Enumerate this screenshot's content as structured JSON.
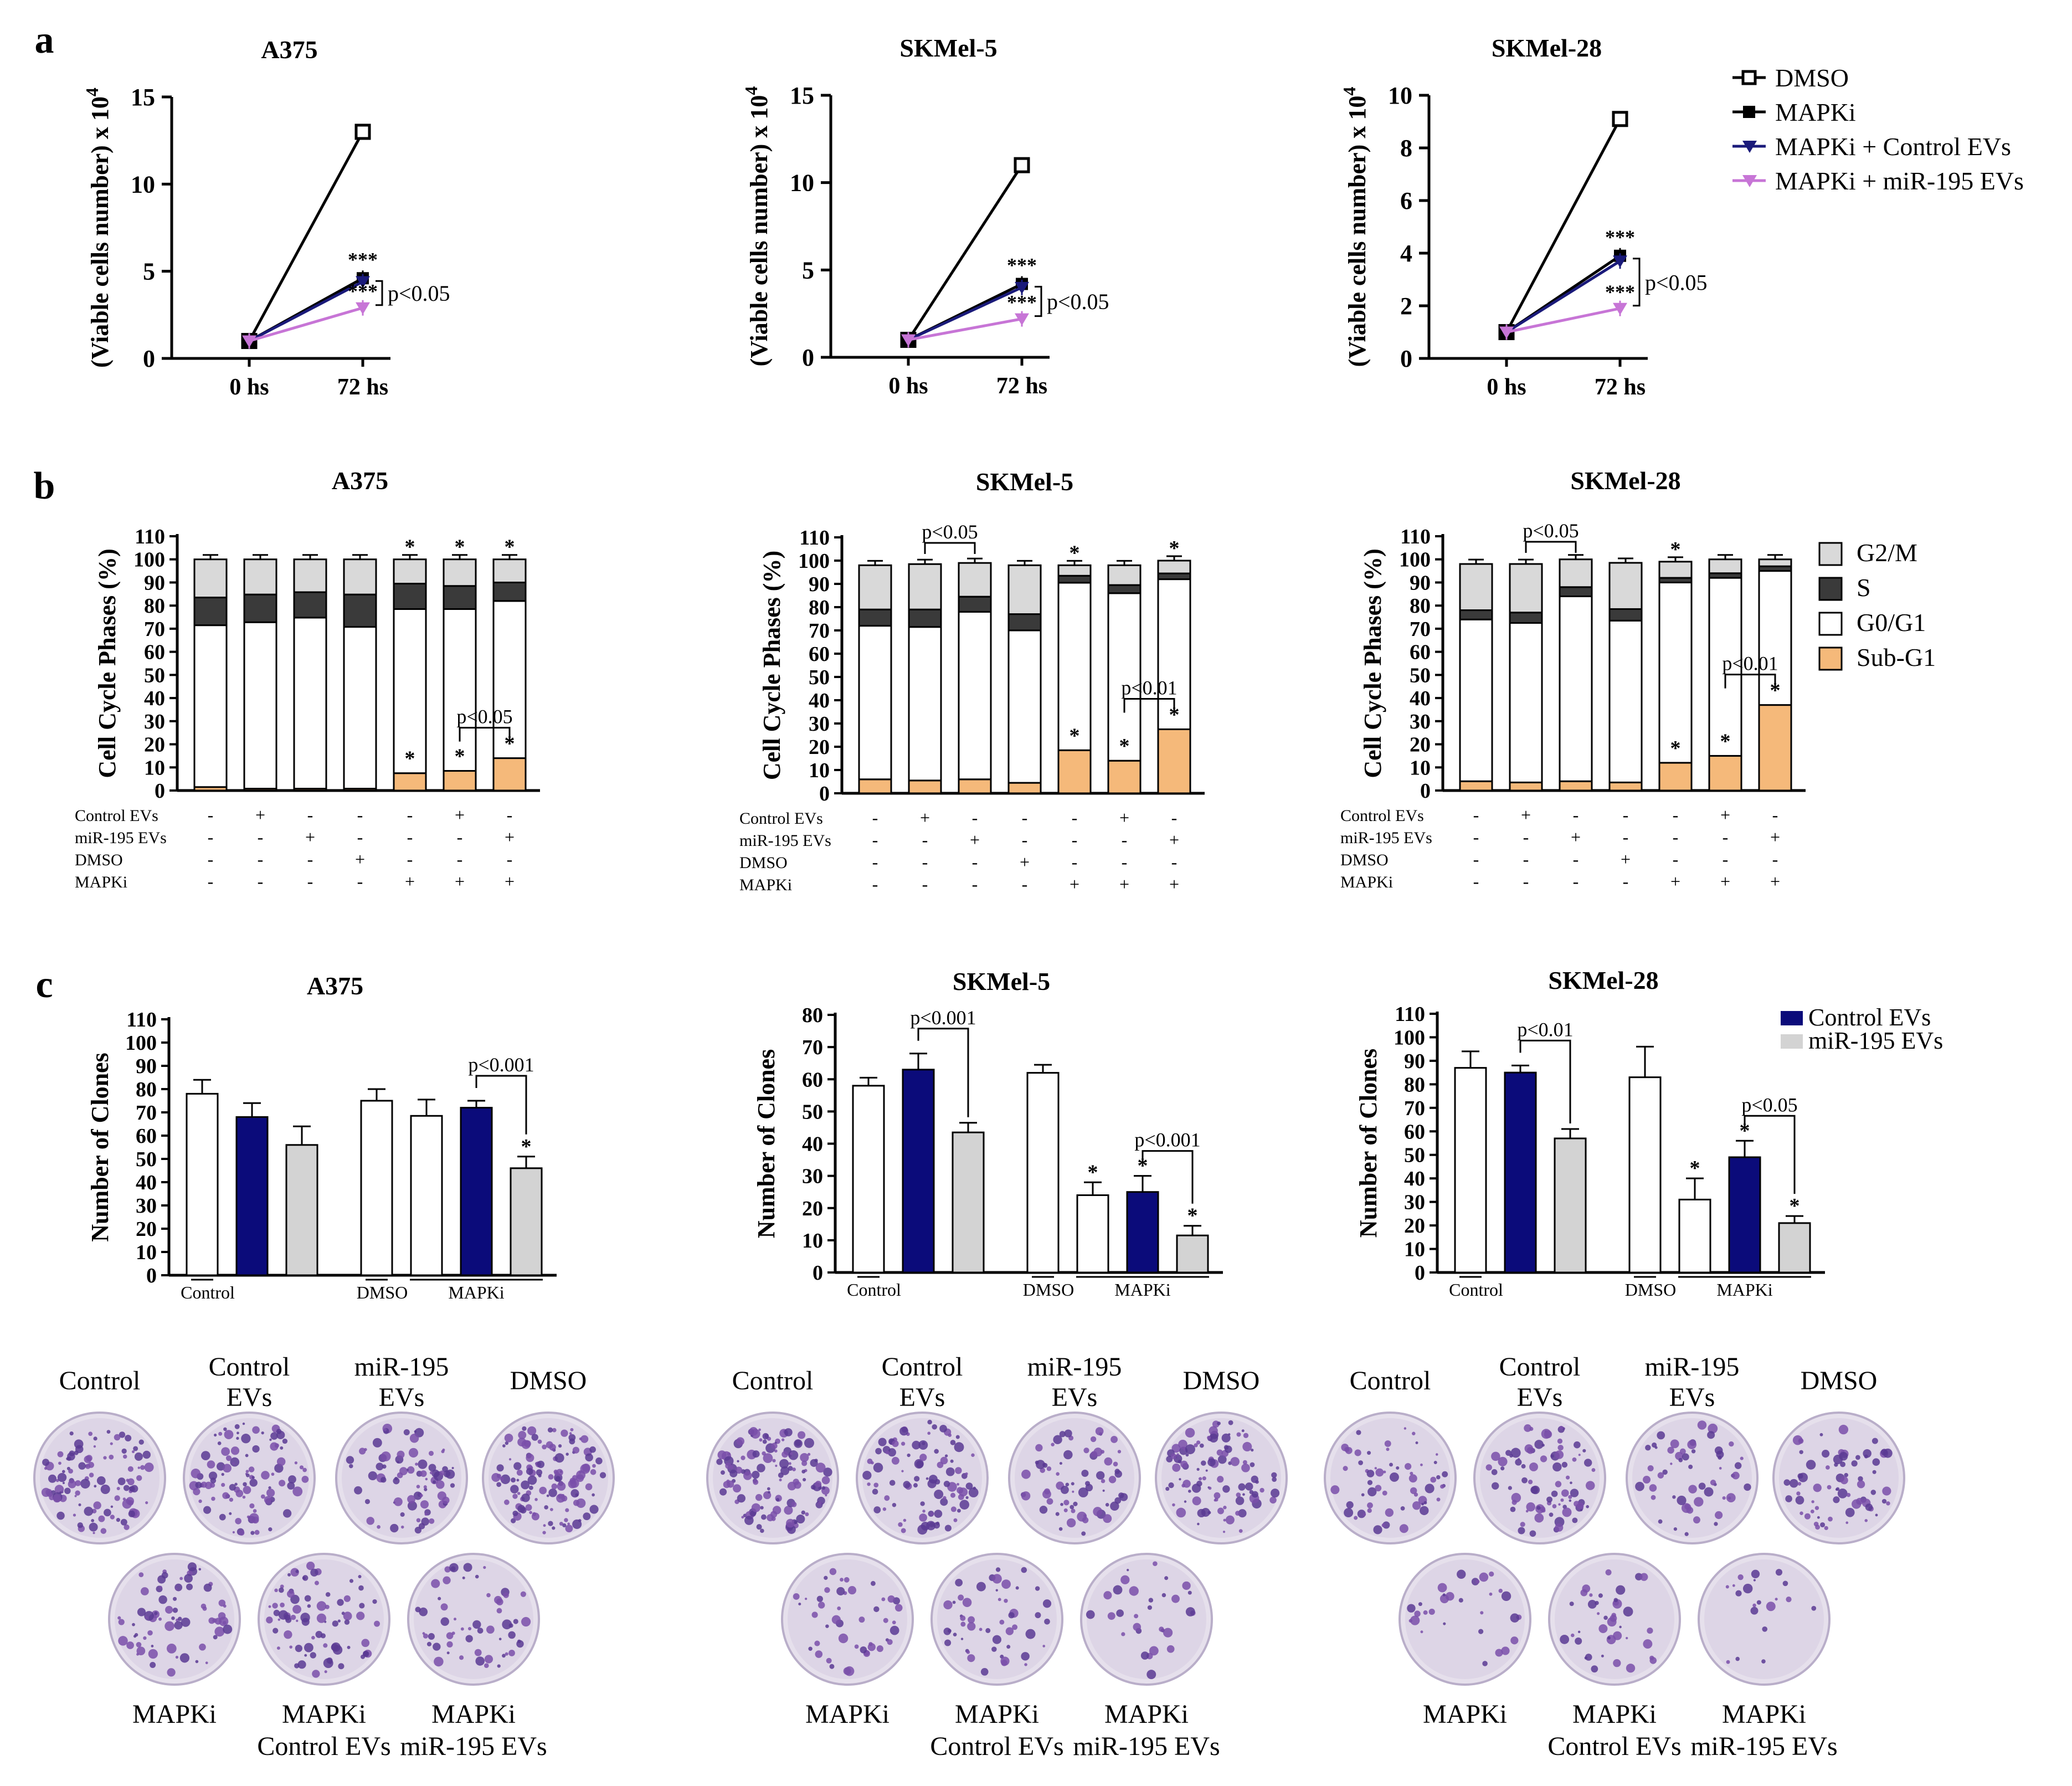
{
  "panel_letters": [
    "a",
    "b",
    "c"
  ],
  "chart_data": [
    {
      "panel": "a",
      "type": "line",
      "title": "A375",
      "ylabel": "(Viable cells number) x 10",
      "ylabel_sup": "4",
      "categories": [
        "0 hs",
        "72 hs"
      ],
      "ylim": [
        0,
        15
      ],
      "yticks": [
        0,
        5,
        10,
        15
      ],
      "series": [
        {
          "name": "DMSO",
          "values": [
            1,
            13
          ]
        },
        {
          "name": "MAPKi",
          "values": [
            1,
            4.6
          ]
        },
        {
          "name": "MAPKi + Control EVs",
          "values": [
            1,
            4.4
          ]
        },
        {
          "name": "MAPKi + miR-195 EVs",
          "values": [
            1,
            2.9
          ]
        }
      ],
      "sig_upper": "***",
      "sig_lower": "***",
      "bracket_label": "p<0.05"
    },
    {
      "panel": "a",
      "type": "line",
      "title": "SKMel-5",
      "ylabel": "(Viable cells number) x 10",
      "ylabel_sup": "4",
      "categories": [
        "0 hs",
        "72 hs"
      ],
      "ylim": [
        0,
        15
      ],
      "yticks": [
        0,
        5,
        10,
        15
      ],
      "series": [
        {
          "name": "DMSO",
          "values": [
            1,
            11
          ]
        },
        {
          "name": "MAPKi",
          "values": [
            1,
            4.2
          ]
        },
        {
          "name": "MAPKi + Control EVs",
          "values": [
            1,
            4.0
          ]
        },
        {
          "name": "MAPKi + miR-195 EVs",
          "values": [
            1,
            2.2
          ]
        }
      ],
      "sig_upper": "***",
      "sig_lower": "***",
      "bracket_label": "p<0.05"
    },
    {
      "panel": "a",
      "type": "line",
      "title": "SKMel-28",
      "ylabel": "(Viable cells number) x 10",
      "ylabel_sup": "4",
      "categories": [
        "0 hs",
        "72 hs"
      ],
      "ylim": [
        0,
        10
      ],
      "yticks": [
        0,
        2,
        4,
        6,
        8,
        10
      ],
      "series": [
        {
          "name": "DMSO",
          "values": [
            1,
            9.1
          ]
        },
        {
          "name": "MAPKi",
          "values": [
            1,
            3.9
          ]
        },
        {
          "name": "MAPKi + Control EVs",
          "values": [
            1,
            3.7
          ]
        },
        {
          "name": "MAPKi + miR-195 EVs",
          "values": [
            1,
            1.9
          ]
        }
      ],
      "sig_upper": "***",
      "sig_lower": "***",
      "bracket_label": "p<0.05"
    },
    {
      "panel": "b",
      "type": "bar",
      "stacked": true,
      "title": "A375",
      "ylabel": "Cell Cycle Phases (%)",
      "ylim": [
        0,
        110
      ],
      "yticks": [
        0,
        10,
        20,
        30,
        40,
        50,
        60,
        70,
        80,
        90,
        100,
        110
      ],
      "series": [
        {
          "name": "Sub-G1",
          "values": [
            1.5,
            0.8,
            0.8,
            0.8,
            7.5,
            8.5,
            14
          ]
        },
        {
          "name": "G0/G1",
          "values": [
            70,
            72,
            74,
            70,
            71,
            70,
            68
          ]
        },
        {
          "name": "S",
          "values": [
            12,
            12,
            11,
            14,
            11,
            10,
            8
          ]
        },
        {
          "name": "G2/M",
          "values": [
            16.5,
            15.2,
            14.2,
            15.2,
            10.5,
            11.5,
            10
          ]
        }
      ],
      "top_stars": [
        "",
        "",
        "",
        "",
        "*",
        "*",
        "*"
      ],
      "subg1_stars": [
        "",
        "",
        "",
        "",
        "*",
        "*",
        "*"
      ],
      "row_labels": [
        "Control EVs",
        "miR-195 EVs",
        "DMSO",
        "MAPKi"
      ],
      "row_values": [
        [
          "-",
          "+",
          "-",
          "-",
          "-",
          "+",
          "-"
        ],
        [
          "-",
          "-",
          "+",
          "-",
          "-",
          "-",
          "+"
        ],
        [
          "-",
          "-",
          "-",
          "+",
          "-",
          "-",
          "-"
        ],
        [
          "-",
          "-",
          "-",
          "-",
          "+",
          "+",
          "+"
        ]
      ],
      "bracket_label": "p<0.05"
    },
    {
      "panel": "b",
      "type": "bar",
      "stacked": true,
      "title": "SKMel-5",
      "ylabel": "Cell Cycle Phases (%)",
      "ylim": [
        0,
        110
      ],
      "yticks": [
        0,
        10,
        20,
        30,
        40,
        50,
        60,
        70,
        80,
        90,
        100,
        110
      ],
      "series": [
        {
          "name": "Sub-G1",
          "values": [
            6,
            5.5,
            6,
            4.5,
            18.5,
            14,
            27.5
          ]
        },
        {
          "name": "G0/G1",
          "values": [
            66,
            66,
            72,
            65.5,
            72,
            72,
            64.5
          ]
        },
        {
          "name": "S",
          "values": [
            7,
            7.5,
            6.5,
            7,
            3,
            3.5,
            2.5
          ]
        },
        {
          "name": "G2/M",
          "values": [
            19,
            19.5,
            14.5,
            21,
            4.5,
            8.5,
            5.5
          ]
        }
      ],
      "top_stars": [
        "",
        "",
        "",
        "",
        "*",
        "",
        "*"
      ],
      "subg1_stars": [
        "",
        "",
        "",
        "",
        "*",
        "*",
        "*"
      ],
      "row_labels": [
        "Control EVs",
        "miR-195 EVs",
        "DMSO",
        "MAPKi"
      ],
      "row_values": [
        [
          "-",
          "+",
          "-",
          "-",
          "-",
          "+",
          "-"
        ],
        [
          "-",
          "-",
          "+",
          "-",
          "-",
          "-",
          "+"
        ],
        [
          "-",
          "-",
          "-",
          "+",
          "-",
          "-",
          "-"
        ],
        [
          "-",
          "-",
          "-",
          "-",
          "+",
          "+",
          "+"
        ]
      ],
      "bracket_top_label": "p<0.05",
      "bracket_label": "p<0.01"
    },
    {
      "panel": "b",
      "type": "bar",
      "stacked": true,
      "title": "SKMel-28",
      "ylabel": "Cell Cycle Phases (%)",
      "ylim": [
        0,
        110
      ],
      "yticks": [
        0,
        10,
        20,
        30,
        40,
        50,
        60,
        70,
        80,
        90,
        100,
        110
      ],
      "series": [
        {
          "name": "Sub-G1",
          "values": [
            4,
            3.5,
            4,
            3.5,
            12,
            15,
            37
          ]
        },
        {
          "name": "G0/G1",
          "values": [
            70,
            69,
            80,
            70,
            78,
            77,
            58
          ]
        },
        {
          "name": "S",
          "values": [
            4,
            4.5,
            4,
            5,
            2,
            2,
            2
          ]
        },
        {
          "name": "G2/M",
          "values": [
            20,
            21,
            12,
            20,
            7,
            6,
            3
          ]
        }
      ],
      "top_stars": [
        "",
        "",
        "",
        "",
        "*",
        "",
        ""
      ],
      "subg1_stars": [
        "",
        "",
        "",
        "",
        "*",
        "*",
        "*"
      ],
      "row_labels": [
        "Control EVs",
        "miR-195 EVs",
        "DMSO",
        "MAPKi"
      ],
      "row_values": [
        [
          "-",
          "+",
          "-",
          "-",
          "-",
          "+",
          "-"
        ],
        [
          "-",
          "-",
          "+",
          "-",
          "-",
          "-",
          "+"
        ],
        [
          "-",
          "-",
          "-",
          "+",
          "-",
          "-",
          "-"
        ],
        [
          "-",
          "-",
          "-",
          "-",
          "+",
          "+",
          "+"
        ]
      ],
      "bracket_top_label": "p<0.05",
      "bracket_label": "p<0.01"
    },
    {
      "panel": "c",
      "type": "bar",
      "title": "A375",
      "ylabel": "Number of Clones",
      "ylim": [
        0,
        110
      ],
      "yticks": [
        0,
        10,
        20,
        30,
        40,
        50,
        60,
        70,
        80,
        90,
        100,
        110
      ],
      "values": [
        78,
        68,
        56,
        75,
        68.5,
        72,
        46
      ],
      "errors": [
        6,
        6,
        8,
        5,
        7,
        3,
        5
      ],
      "fills": [
        "white",
        "navy",
        "grey",
        "white",
        "white",
        "navy",
        "grey"
      ],
      "stars": [
        "",
        "",
        "",
        "",
        "",
        "",
        "*"
      ],
      "group_labels": [
        "Control",
        "DMSO",
        "MAPKi"
      ],
      "bracket_label": "p<0.001"
    },
    {
      "panel": "c",
      "type": "bar",
      "title": "SKMel-5",
      "ylabel": "Number of Clones",
      "ylim": [
        0,
        80
      ],
      "yticks": [
        0,
        10,
        20,
        30,
        40,
        50,
        60,
        70,
        80
      ],
      "values": [
        58,
        63,
        43.5,
        62,
        24,
        25,
        11.5
      ],
      "errors": [
        2.5,
        5,
        3,
        2.5,
        4,
        5,
        3
      ],
      "fills": [
        "white",
        "navy",
        "grey",
        "white",
        "white",
        "navy",
        "grey"
      ],
      "stars": [
        "",
        "",
        "",
        "",
        "*",
        "*",
        "*"
      ],
      "group_labels": [
        "Control",
        "DMSO",
        "MAPKi"
      ],
      "bracket_top_label": "p<0.001",
      "bracket_label": "p<0.001"
    },
    {
      "panel": "c",
      "type": "bar",
      "title": "SKMel-28",
      "ylabel": "Number of Clones",
      "ylim": [
        0,
        110
      ],
      "yticks": [
        0,
        10,
        20,
        30,
        40,
        50,
        60,
        70,
        80,
        90,
        100,
        110
      ],
      "values": [
        87,
        85,
        57,
        83,
        31,
        49,
        21
      ],
      "errors": [
        7,
        3,
        4,
        13,
        9,
        7,
        3
      ],
      "fills": [
        "white",
        "navy",
        "grey",
        "white",
        "white",
        "navy",
        "grey"
      ],
      "stars": [
        "",
        "",
        "",
        "",
        "*",
        "*",
        "*"
      ],
      "group_labels": [
        "Control",
        "DMSO",
        "MAPKi"
      ],
      "bracket_top_label": "p<0.01",
      "bracket_label": "p<0.05"
    }
  ],
  "legend_a": [
    {
      "label": "DMSO",
      "color": "#000000",
      "marker": "open-square"
    },
    {
      "label": "MAPKi",
      "color": "#000000",
      "marker": "filled-square"
    },
    {
      "label": "MAPKi + Control EVs",
      "color": "#1a1a7a",
      "marker": "triangle"
    },
    {
      "label": "MAPKi + miR-195 EVs",
      "color": "#c775d6",
      "marker": "triangle"
    }
  ],
  "legend_b": [
    {
      "label": "G2/M",
      "color": "#d9d9d9"
    },
    {
      "label": "S",
      "color": "#3a3a3a"
    },
    {
      "label": "G0/G1",
      "color": "#ffffff"
    },
    {
      "label": "Sub-G1",
      "color": "#f5b97a"
    }
  ],
  "legend_c": [
    {
      "label": "Control EVs",
      "color": "#0b0b7a"
    },
    {
      "label": "miR-195 EVs",
      "color": "#d3d3d3"
    }
  ],
  "colony_panels": [
    {
      "cell_line": "A375",
      "top_labels": [
        [
          "Control"
        ],
        [
          "Control",
          "EVs"
        ],
        [
          "miR-195",
          "EVs"
        ],
        [
          "DMSO"
        ]
      ],
      "bottom_labels": [
        [
          "MAPKi"
        ],
        [
          "MAPKi",
          "Control EVs"
        ],
        [
          "MAPKi",
          "miR-195 EVs"
        ]
      ],
      "density": [
        110,
        100,
        80,
        130,
        70,
        80,
        55
      ]
    },
    {
      "cell_line": "SKMel-5",
      "top_labels": [
        [
          "Control"
        ],
        [
          "Control",
          "EVs"
        ],
        [
          "miR-195",
          "EVs"
        ],
        [
          "DMSO"
        ]
      ],
      "bottom_labels": [
        [
          "MAPKi"
        ],
        [
          "MAPKi",
          "Control EVs"
        ],
        [
          "MAPKi",
          "miR-195 EVs"
        ]
      ],
      "density": [
        130,
        95,
        70,
        100,
        45,
        50,
        30
      ]
    },
    {
      "cell_line": "SKMel-28",
      "top_labels": [
        [
          "Control"
        ],
        [
          "Control",
          "EVs"
        ],
        [
          "miR-195",
          "EVs"
        ],
        [
          "DMSO"
        ]
      ],
      "bottom_labels": [
        [
          "MAPKi"
        ],
        [
          "MAPKi",
          "Control EVs"
        ],
        [
          "MAPKi",
          "miR-195 EVs"
        ]
      ],
      "density": [
        60,
        85,
        55,
        70,
        30,
        40,
        20
      ]
    }
  ]
}
